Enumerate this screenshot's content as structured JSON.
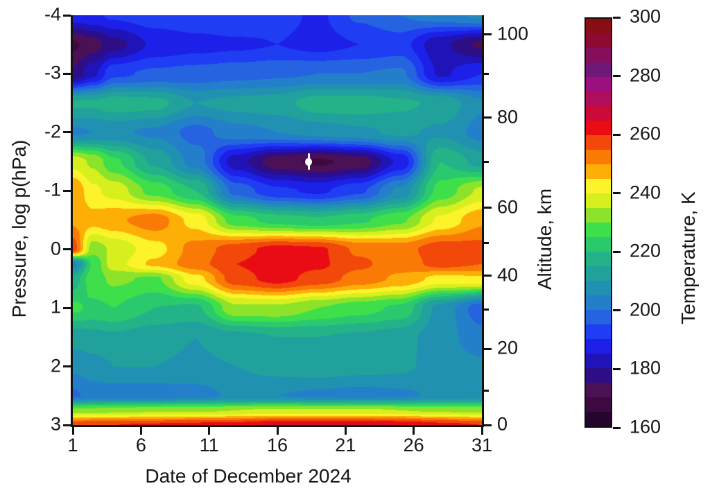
{
  "figure": {
    "x_axis": {
      "label": "Date of December 2024",
      "tick_values": [
        1,
        6,
        11,
        16,
        21,
        26,
        31
      ],
      "range": [
        1,
        31
      ]
    },
    "y_axis_left": {
      "label": "Pressure, log p(hPa)",
      "tick_values": [
        -4,
        -3,
        -2,
        -1,
        0,
        1,
        2,
        3
      ],
      "range": [
        -4,
        3
      ]
    },
    "y_axis_right": {
      "label": "Altitude, km",
      "labeled_ticks": [
        100,
        80,
        60,
        40,
        20,
        0
      ],
      "tick_positions": [
        {
          "km": 100,
          "log_p": -3.67
        },
        {
          "km": 90,
          "log_p": -3.0
        },
        {
          "km": 80,
          "log_p": -2.25
        },
        {
          "km": 70,
          "log_p": -1.5
        },
        {
          "km": 60,
          "log_p": -0.71
        },
        {
          "km": 50,
          "log_p": -0.115
        },
        {
          "km": 40,
          "log_p": 0.45
        },
        {
          "km": 30,
          "log_p": 1.03
        },
        {
          "km": 20,
          "log_p": 1.7
        },
        {
          "km": 10,
          "log_p": 2.41
        },
        {
          "km": 0,
          "log_p": 3.0
        }
      ]
    },
    "colorbar": {
      "label": "Temperature, K",
      "tick_values": [
        300,
        280,
        260,
        240,
        220,
        200,
        180,
        160
      ],
      "min": 160,
      "max": 300,
      "band_step_K": 5,
      "band_colors_low_to_high": [
        "#26052d",
        "#3d0941",
        "#4c1055",
        "#2e0e86",
        "#2013b8",
        "#1c20e8",
        "#1f3df2",
        "#2563e0",
        "#237fca",
        "#2191b2",
        "#21a19c",
        "#24b288",
        "#2bc96e",
        "#3edf4b",
        "#8ce32a",
        "#d8ef1e",
        "#fcf32b",
        "#fdae07",
        "#f97b06",
        "#f2480a",
        "#e90c14",
        "#cc0a38",
        "#b00d5c",
        "#9c0f7e",
        "#6f1878",
        "#850f5a",
        "#8e0a32",
        "#870e14"
      ]
    }
  },
  "chart_data": {
    "type": "heatmap",
    "title": "",
    "x_name": "day of December 2024",
    "y_name": "log10 pressure (hPa)",
    "z_name": "temperature (K)",
    "contour_interval_K": 5,
    "z_range_K": [
      160,
      300
    ],
    "x_days": [
      1,
      2.5,
      4,
      7,
      10,
      13,
      16,
      19,
      22,
      25,
      28,
      31
    ],
    "y_log_p": [
      -4,
      -3.5,
      -3,
      -2.5,
      -2,
      -1.5,
      -1,
      -0.5,
      0,
      0.25,
      0.5,
      1,
      1.5,
      2,
      2.5,
      2.75,
      3
    ],
    "temperature_K": [
      [
        188,
        189,
        191,
        193,
        194,
        195,
        192,
        189,
        196,
        200,
        203,
        206
      ],
      [
        169,
        173,
        178,
        186,
        188,
        189,
        190,
        188,
        190,
        192,
        181,
        174
      ],
      [
        176,
        184,
        194,
        196,
        197,
        198,
        199,
        200,
        200,
        201,
        184,
        190
      ],
      [
        216,
        216,
        218,
        217,
        210,
        212,
        213,
        218,
        218,
        216,
        214,
        206
      ],
      [
        204,
        205,
        206,
        204,
        198,
        203,
        205,
        207,
        209,
        211,
        209,
        203
      ],
      [
        238,
        234,
        226,
        214,
        203,
        182,
        172,
        169,
        172,
        186,
        220,
        213
      ],
      [
        250,
        241,
        238,
        228,
        220,
        198,
        191,
        189,
        194,
        206,
        227,
        236
      ],
      [
        249,
        247,
        249,
        253,
        243,
        227,
        223,
        221,
        224,
        229,
        241,
        249
      ],
      [
        258,
        232,
        236,
        243,
        252,
        258,
        262,
        261,
        254,
        253,
        258,
        257
      ],
      [
        203,
        226,
        238,
        246,
        253,
        260,
        263,
        261,
        256,
        252,
        257,
        255
      ],
      [
        217,
        228,
        231,
        229,
        243,
        258,
        262,
        258,
        253,
        249,
        243,
        244
      ],
      [
        226,
        224,
        225,
        220,
        219,
        234,
        234,
        230,
        227,
        224,
        208,
        197
      ],
      [
        212,
        213,
        214,
        212,
        210,
        213,
        215,
        215,
        214,
        212,
        207,
        202
      ],
      [
        206,
        208,
        210,
        210,
        209,
        210,
        212,
        213,
        212,
        211,
        208,
        206
      ],
      [
        199,
        202,
        202,
        202,
        203,
        206,
        205,
        204,
        203,
        204,
        206,
        207
      ],
      [
        232,
        232,
        233,
        234,
        234,
        235,
        236,
        236,
        236,
        235,
        234,
        233
      ],
      [
        259,
        260,
        260,
        261,
        262,
        263,
        266,
        266,
        266,
        265,
        262,
        260
      ]
    ],
    "marker": {
      "day": 18.3,
      "log_p": -1.5,
      "color": "#ffffff",
      "style": "white circle with vertical error bar"
    }
  }
}
